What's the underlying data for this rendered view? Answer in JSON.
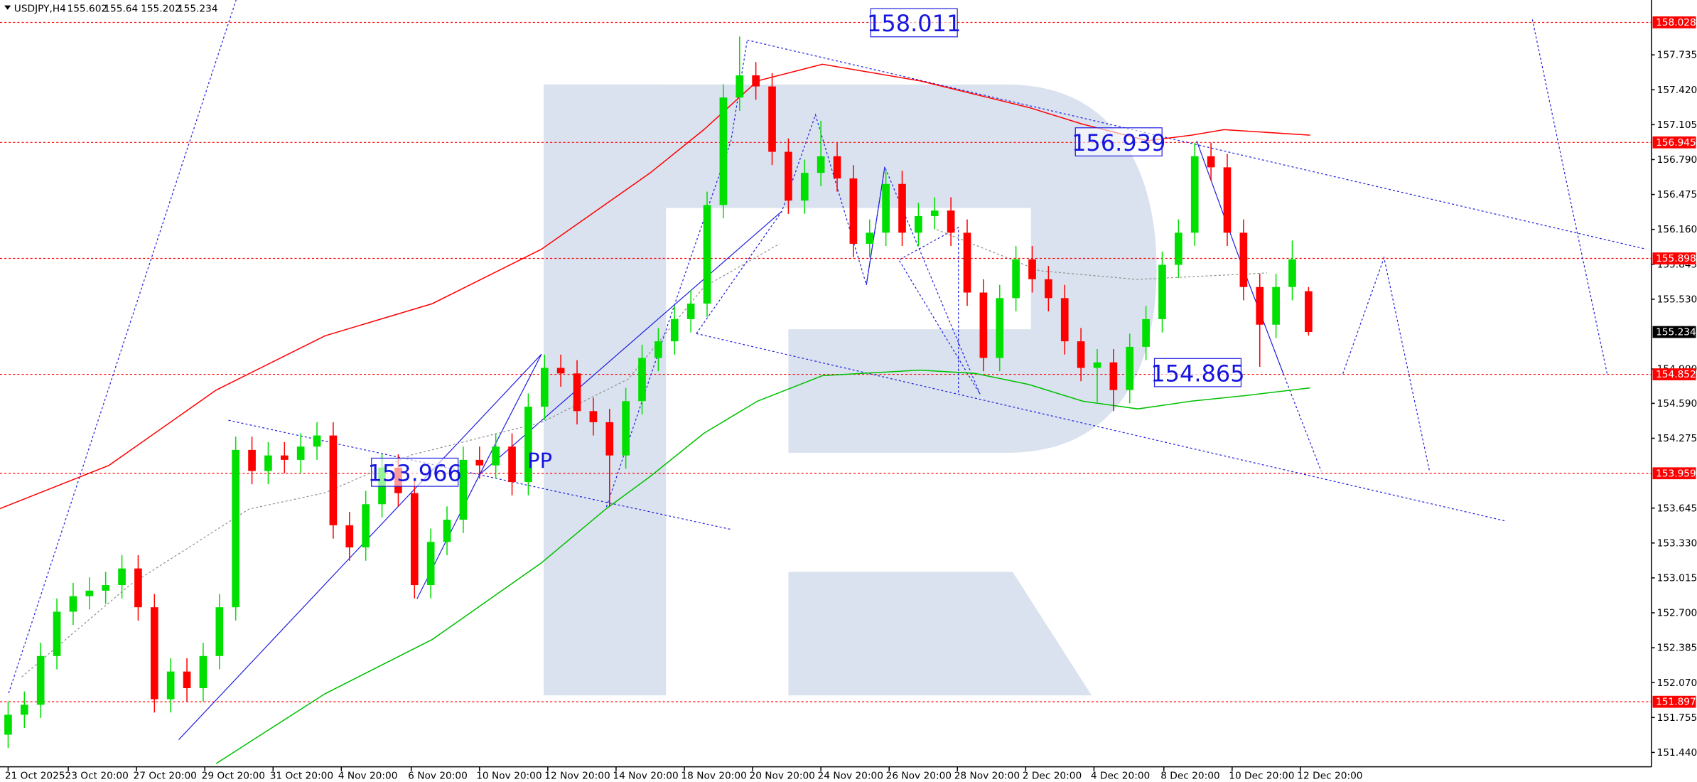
{
  "chart_data": {
    "type": "candlestick",
    "symbol": "USDJPY,H4",
    "header_values": [
      "chart_data.candles.open.80",
      "chart_data.candles.high.80",
      "chart_data.candles.low.80",
      "chart_data.candles.close.80"
    ],
    "ylim": [
      151.31,
      158.23
    ],
    "yticks": [
      157.735,
      {
        "value": 157.42,
        "label": "157.420"
      },
      157.105,
      {
        "value": 156.79,
        "label": "156.790"
      },
      156.475,
      {
        "value": 156.16,
        "label": "156.160"
      },
      155.845,
      {
        "value": 155.53,
        "label": "155.530"
      },
      {
        "value": 154.9,
        "label": "154.900"
      },
      {
        "value": 154.59,
        "label": "154.590"
      },
      154.275,
      153.645,
      {
        "value": 153.33,
        "label": "153.330"
      },
      153.015,
      {
        "value": 152.7,
        "label": "152.700"
      },
      152.385,
      {
        "value": 152.07,
        "label": "152.070"
      },
      151.755,
      {
        "value": 151.44,
        "label": "151.440"
      }
    ],
    "xlim": [
      -0.5,
      101.1
    ],
    "xticks": [
      {
        "value": 0,
        "label": "21 Oct 2025"
      },
      {
        "value": 3.7,
        "label": "23 Oct 20:00"
      },
      {
        "value": 7.9,
        "label": "27 Oct 20:00"
      },
      {
        "value": 12.1,
        "label": "29 Oct 20:00"
      },
      {
        "value": 16.3,
        "label": "31 Oct 20:00"
      },
      {
        "value": 20.5,
        "label": "4 Nov 20:00"
      },
      {
        "value": 24.8,
        "label": "6 Nov 20:00"
      },
      {
        "value": 29,
        "label": "10 Nov 20:00"
      },
      {
        "value": 33.2,
        "label": "12 Nov 20:00"
      },
      {
        "value": 37.4,
        "label": "14 Nov 20:00"
      },
      {
        "value": 41.6,
        "label": "18 Nov 20:00"
      },
      {
        "value": 45.8,
        "label": "20 Nov 20:00"
      },
      {
        "value": 50,
        "label": "24 Nov 20:00"
      },
      {
        "value": 54.2,
        "label": "26 Nov 20:00"
      },
      {
        "value": 58.4,
        "label": "28 Nov 20:00"
      },
      {
        "value": 62.6,
        "label": "2 Dec 20:00"
      },
      {
        "value": 66.8,
        "label": "4 Dec 20:00"
      },
      {
        "value": 71.1,
        "label": "8 Dec 20:00"
      },
      {
        "value": 75.3,
        "label": "10 Dec 20:00"
      },
      {
        "value": 79.5,
        "label": "12 Dec 20:00"
      }
    ],
    "up_color": "#00e000",
    "down_color": "#ff0000",
    "candles": {
      "open": [
        151.6,
        151.78,
        151.87,
        152.31,
        152.71,
        152.85,
        152.9,
        152.95,
        153.1,
        152.75,
        151.92,
        152.17,
        152.02,
        152.31,
        152.75,
        154.17,
        153.98,
        154.12,
        154.08,
        154.2,
        154.3,
        153.49,
        153.29,
        153.68,
        154.01,
        153.78,
        152.95,
        153.34,
        153.54,
        154.08,
        154.03,
        154.2,
        153.88,
        154.56,
        154.91,
        154.86,
        154.52,
        154.42,
        154.12,
        154.61,
        155.0,
        155.15,
        155.35,
        155.49,
        156.38,
        157.35,
        157.55,
        157.45,
        156.86,
        156.42,
        156.67,
        156.82,
        156.62,
        156.03,
        156.13,
        156.57,
        156.13,
        156.28,
        156.33,
        156.13,
        155.59,
        155.0,
        155.54,
        155.89,
        155.71,
        155.54,
        155.15,
        154.91,
        154.96,
        154.71,
        155.1,
        155.35,
        155.84,
        156.13,
        156.82,
        156.72,
        156.13,
        155.64,
        155.3,
        155.64,
        155.602
      ],
      "high": [
        151.9,
        151.99,
        152.43,
        152.83,
        152.97,
        153.02,
        153.07,
        153.22,
        153.22,
        152.87,
        152.29,
        152.29,
        152.43,
        152.87,
        154.29,
        154.29,
        154.24,
        154.24,
        154.32,
        154.42,
        154.42,
        153.61,
        153.8,
        154.13,
        154.13,
        153.9,
        153.46,
        153.66,
        154.2,
        154.2,
        154.32,
        154.32,
        154.68,
        155.03,
        155.03,
        154.98,
        154.64,
        154.54,
        154.73,
        155.12,
        155.27,
        155.47,
        155.61,
        156.5,
        157.47,
        157.9,
        157.67,
        157.57,
        156.98,
        156.79,
        157.14,
        156.94,
        156.74,
        156.25,
        156.69,
        156.69,
        156.4,
        156.45,
        156.45,
        156.25,
        155.71,
        155.66,
        156.01,
        156.01,
        155.83,
        155.66,
        155.27,
        155.08,
        155.08,
        155.22,
        155.47,
        155.96,
        156.25,
        156.94,
        156.94,
        156.84,
        156.25,
        155.76,
        155.76,
        156.06,
        155.64
      ],
      "low": [
        151.48,
        151.66,
        151.75,
        152.19,
        152.59,
        152.73,
        152.78,
        152.83,
        152.63,
        151.8,
        151.8,
        151.9,
        151.9,
        152.19,
        152.63,
        153.86,
        153.86,
        153.96,
        153.96,
        154.08,
        153.37,
        153.17,
        153.17,
        153.56,
        153.66,
        152.83,
        152.83,
        153.22,
        153.42,
        153.91,
        153.91,
        153.76,
        153.76,
        154.44,
        154.74,
        154.4,
        154.3,
        153.66,
        154.0,
        154.49,
        154.88,
        155.03,
        155.23,
        155.37,
        156.26,
        157.23,
        157.33,
        156.74,
        156.3,
        156.3,
        156.55,
        156.5,
        155.91,
        155.91,
        156.01,
        156.01,
        156.01,
        156.16,
        156.01,
        155.47,
        154.88,
        154.88,
        155.42,
        155.59,
        155.42,
        155.03,
        154.79,
        154.6,
        154.52,
        154.59,
        154.98,
        155.23,
        155.72,
        156.01,
        156.6,
        156.01,
        155.52,
        154.92,
        155.18,
        155.52,
        155.202
      ],
      "close": [
        151.78,
        151.87,
        152.31,
        152.71,
        152.85,
        152.9,
        152.95,
        153.1,
        152.75,
        151.92,
        152.17,
        152.02,
        152.31,
        152.75,
        154.17,
        153.98,
        154.12,
        154.08,
        154.2,
        154.3,
        153.49,
        153.29,
        153.68,
        154.01,
        153.78,
        152.95,
        153.34,
        153.54,
        154.08,
        154.03,
        154.2,
        153.88,
        154.56,
        154.91,
        154.86,
        154.52,
        154.42,
        154.12,
        154.61,
        155.0,
        155.15,
        155.35,
        155.49,
        156.38,
        157.35,
        157.55,
        157.45,
        156.86,
        156.42,
        156.67,
        156.82,
        156.62,
        156.03,
        156.13,
        156.57,
        156.13,
        156.28,
        156.33,
        156.13,
        155.59,
        155.0,
        155.54,
        155.89,
        155.71,
        155.54,
        155.15,
        154.91,
        154.96,
        154.71,
        155.1,
        155.35,
        155.84,
        156.13,
        156.82,
        156.72,
        156.13,
        155.64,
        155.3,
        155.64,
        155.89,
        155.234
      ]
    },
    "series": [
      {
        "color": "#ff0000",
        "x": [
          -0.5,
          6.2,
          12.8,
          19.5,
          26.1,
          32.8,
          39.5,
          42.8,
          46.1,
          50.1,
          56.1,
          62.8,
          66.1,
          70.1,
          72.8,
          74.8,
          80.1
        ],
        "values": [
          153.64,
          154.03,
          154.71,
          155.2,
          155.49,
          155.98,
          156.67,
          157.06,
          157.5,
          157.65,
          157.5,
          157.26,
          157.11,
          156.96,
          157.01,
          157.06,
          157.01
        ]
      },
      {
        "color": "#00c000",
        "x": [
          12.8,
          19.5,
          26.1,
          32.8,
          36.8,
          39.5,
          42.8,
          46.1,
          50.1,
          56.1,
          59.5,
          62.8,
          66.1,
          69.5,
          72.8,
          76.1,
          80.1
        ],
        "values": [
          151.34,
          151.97,
          152.46,
          153.15,
          153.64,
          153.93,
          154.32,
          154.61,
          154.84,
          154.89,
          154.86,
          154.76,
          154.61,
          154.54,
          154.61,
          154.66,
          154.73
        ]
      }
    ],
    "levels": [
      158.028,
      156.945,
      155.898,
      154.852,
      153.959,
      151.897
    ],
    "level_color": "#ff0000",
    "price_labels": [
      158.011,
      156.939,
      154.865,
      153.966
    ],
    "pattern_label": "PP"
  }
}
